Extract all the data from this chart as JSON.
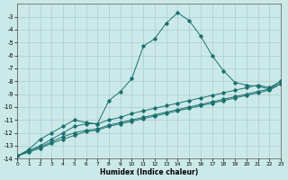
{
  "xlabel": "Humidex (Indice chaleur)",
  "background_color": "#cce9e9",
  "grid_color": "#aacccc",
  "line_color": "#1a7070",
  "xlim": [
    0,
    23
  ],
  "ylim": [
    -14,
    -2
  ],
  "yticks": [
    -14,
    -13,
    -12,
    -11,
    -10,
    -9,
    -8,
    -7,
    -6,
    -5,
    -4,
    -3
  ],
  "xticks": [
    0,
    1,
    2,
    3,
    4,
    5,
    6,
    7,
    8,
    9,
    10,
    11,
    12,
    13,
    14,
    15,
    16,
    17,
    18,
    19,
    20,
    21,
    22,
    23
  ],
  "curve_big_x": [
    0,
    1,
    2,
    3,
    4,
    5,
    6,
    7,
    8,
    9,
    10,
    11,
    12,
    13,
    14,
    15,
    16,
    17,
    18,
    19,
    20,
    21,
    22,
    23
  ],
  "curve_big_y": [
    -13.8,
    -13.3,
    -12.5,
    -12.0,
    -11.5,
    -11.0,
    -11.2,
    -11.3,
    -9.5,
    -8.8,
    -7.8,
    -5.3,
    -4.7,
    -3.5,
    -2.7,
    -3.3,
    -4.5,
    -6.0,
    -7.2,
    -8.1,
    -8.3,
    -8.4,
    -8.6,
    -8.0
  ],
  "curve_lin1_x": [
    0,
    1,
    2,
    3,
    4,
    5,
    6,
    7,
    8,
    9,
    10,
    11,
    12,
    13,
    14,
    15,
    16,
    17,
    18,
    19,
    20,
    21,
    22,
    23
  ],
  "curve_lin1_y": [
    -13.8,
    -13.4,
    -13.0,
    -12.5,
    -12.0,
    -11.5,
    -11.3,
    -11.3,
    -11.0,
    -10.8,
    -10.5,
    -10.3,
    -10.1,
    -9.9,
    -9.7,
    -9.5,
    -9.3,
    -9.1,
    -8.9,
    -8.7,
    -8.5,
    -8.3,
    -8.5,
    -8.0
  ],
  "curve_lin2_x": [
    0,
    1,
    2,
    3,
    4,
    5,
    6,
    7,
    8,
    9,
    10,
    11,
    12,
    13,
    14,
    15,
    16,
    17,
    18,
    19,
    20,
    21,
    22,
    23
  ],
  "curve_lin2_y": [
    -13.8,
    -13.4,
    -13.1,
    -12.7,
    -12.3,
    -12.0,
    -11.8,
    -11.7,
    -11.4,
    -11.2,
    -11.0,
    -10.8,
    -10.6,
    -10.4,
    -10.2,
    -10.0,
    -9.8,
    -9.6,
    -9.4,
    -9.2,
    -9.0,
    -8.8,
    -8.6,
    -8.2
  ],
  "curve_lin3_x": [
    0,
    1,
    2,
    3,
    4,
    5,
    6,
    7,
    8,
    9,
    10,
    11,
    12,
    13,
    14,
    15,
    16,
    17,
    18,
    19,
    20,
    21,
    22,
    23
  ],
  "curve_lin3_y": [
    -13.8,
    -13.5,
    -13.2,
    -12.8,
    -12.5,
    -12.2,
    -11.9,
    -11.8,
    -11.5,
    -11.3,
    -11.1,
    -10.9,
    -10.7,
    -10.5,
    -10.3,
    -10.1,
    -9.9,
    -9.7,
    -9.5,
    -9.3,
    -9.1,
    -8.9,
    -8.7,
    -8.2
  ]
}
